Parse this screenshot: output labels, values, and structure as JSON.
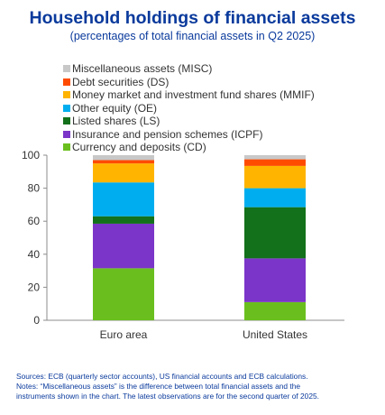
{
  "title": "Household holdings of financial assets",
  "subtitle": "(percentages of total financial assets in Q2 2025)",
  "chart_data": {
    "type": "bar",
    "stacked": true,
    "categories": [
      "Euro area",
      "United States"
    ],
    "series": [
      {
        "name": "Currency and deposits (CD)",
        "color": "#6abf1e",
        "values": [
          31.5,
          11
        ]
      },
      {
        "name": "Insurance and pension schemes (ICPF)",
        "color": "#7b35c8",
        "values": [
          27,
          26.5
        ]
      },
      {
        "name": "Listed shares (LS)",
        "color": "#12711a",
        "values": [
          4.5,
          31
        ]
      },
      {
        "name": "Other equity (OE)",
        "color": "#00aeef",
        "values": [
          20.5,
          11.5
        ]
      },
      {
        "name": "Money market and investment fund shares (MMIF)",
        "color": "#ffb400",
        "values": [
          11.5,
          13.5
        ]
      },
      {
        "name": "Debt securities (DS)",
        "color": "#ff4b00",
        "values": [
          2,
          4
        ]
      },
      {
        "name": "Miscellaneous assets (MISC)",
        "color": "#c8c8c8",
        "values": [
          3,
          2.5
        ]
      }
    ],
    "ylim": [
      0,
      100
    ],
    "yticks": [
      0,
      20,
      40,
      60,
      80,
      100
    ],
    "grid": false,
    "legend_position": "top-left",
    "legend_order": [
      "Miscellaneous assets (MISC)",
      "Debt securities (DS)",
      "Money market and investment fund shares (MMIF)",
      "Other equity (OE)",
      "Listed shares (LS)",
      "Insurance and pension schemes (ICPF)",
      "Currency and deposits (CD)"
    ]
  },
  "notes": {
    "sources": "Sources: ECB (quarterly sector accounts), US financial accounts and ECB calculations.",
    "notes_line1": "Notes: “Miscellaneous assets” is the difference between total financial assets and the",
    "notes_line2": "instruments shown in the chart. The latest observations are for the second quarter of 2025."
  }
}
